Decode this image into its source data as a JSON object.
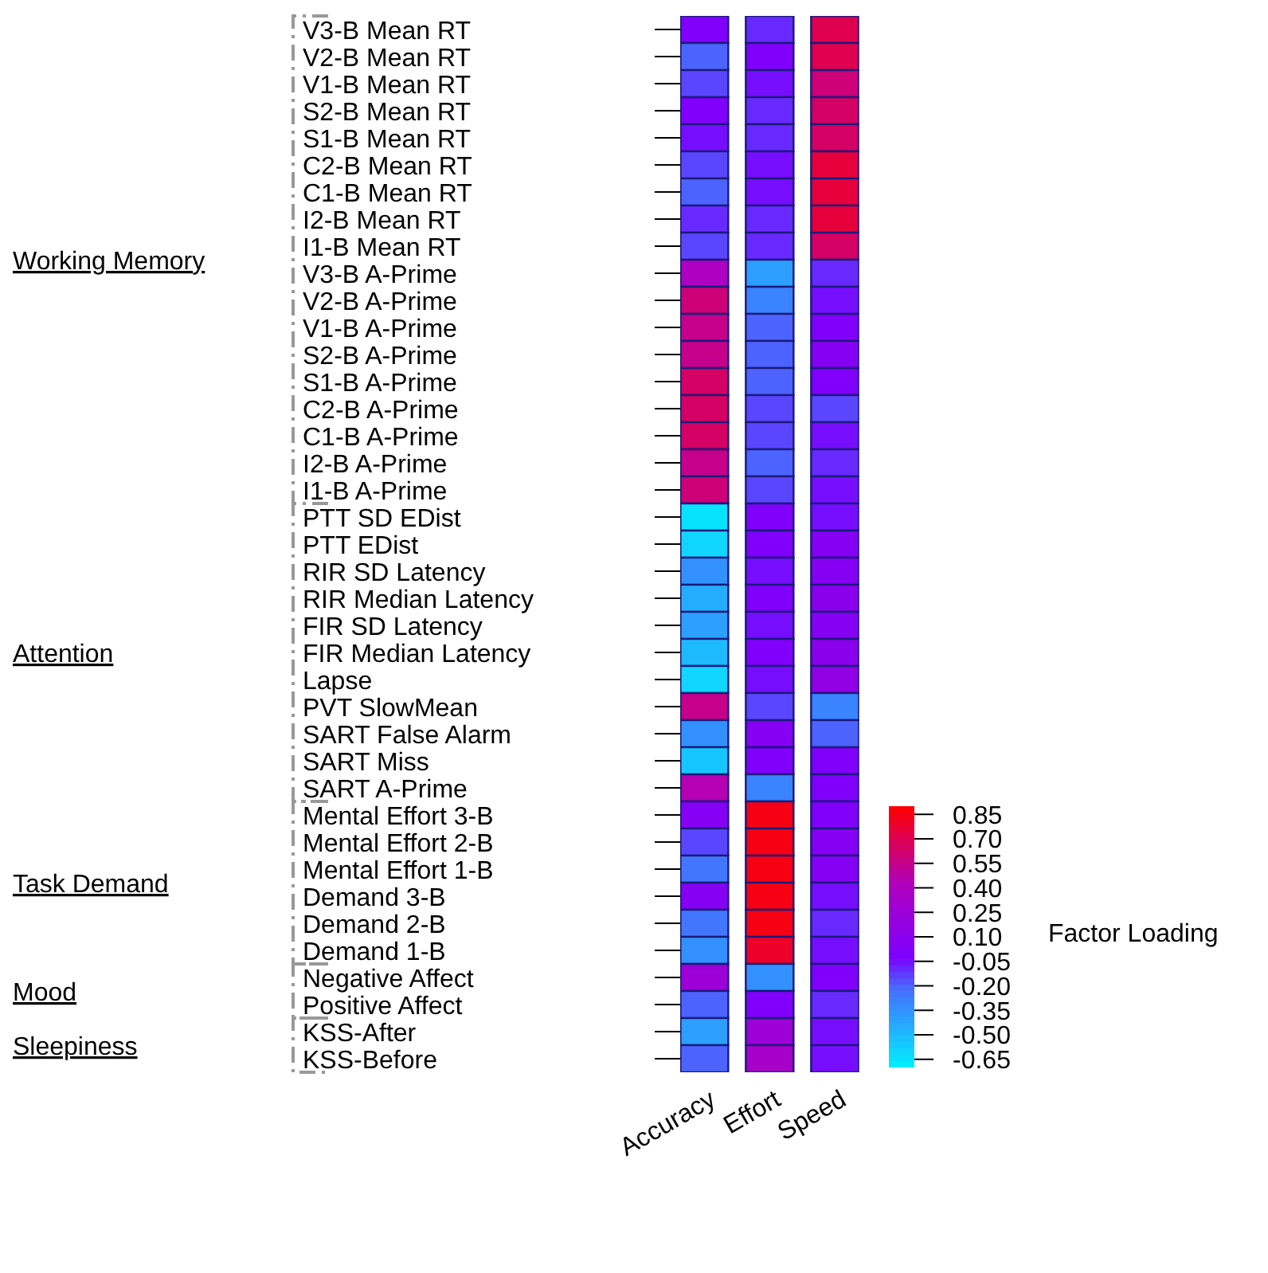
{
  "chart_data": {
    "type": "heatmap",
    "categories": [
      "Accuracy",
      "Effort",
      "Speed"
    ],
    "y_categories": [
      "V3-B Mean RT",
      "V2-B Mean RT",
      "V1-B Mean RT",
      "S2-B Mean RT",
      "S1-B Mean RT",
      "C2-B Mean RT",
      "C1-B Mean RT",
      "I2-B Mean RT",
      "I1-B Mean RT",
      "V3-B A-Prime",
      "V2-B A-Prime",
      "V1-B A-Prime",
      "S2-B A-Prime",
      "S1-B A-Prime",
      "C2-B A-Prime",
      "C1-B A-Prime",
      "I2-B A-Prime",
      "I1-B A-Prime",
      "PTT SD EDist",
      "PTT EDist",
      "RIR SD Latency",
      "RIR Median Latency",
      "FIR SD Latency",
      "FIR Median Latency",
      "Lapse",
      "PVT SlowMean",
      "SART False Alarm",
      "SART Miss",
      "SART A-Prime",
      "Mental Effort 3-B",
      "Mental Effort 2-B",
      "Mental Effort 1-B",
      "Demand 3-B",
      "Demand 2-B",
      "Demand 1-B",
      "Negative Affect",
      "Positive Affect",
      "KSS-After",
      "KSS-Before"
    ],
    "cells": [
      [
        0.0,
        -0.1,
        0.7
      ],
      [
        -0.2,
        0.0,
        0.7
      ],
      [
        -0.15,
        -0.05,
        0.6
      ],
      [
        0.0,
        -0.1,
        0.65
      ],
      [
        -0.05,
        -0.1,
        0.65
      ],
      [
        -0.15,
        -0.05,
        0.75
      ],
      [
        -0.2,
        -0.05,
        0.75
      ],
      [
        -0.1,
        -0.1,
        0.75
      ],
      [
        -0.15,
        -0.1,
        0.65
      ],
      [
        0.4,
        -0.4,
        -0.1
      ],
      [
        0.6,
        -0.3,
        -0.05
      ],
      [
        0.55,
        -0.2,
        0.0
      ],
      [
        0.55,
        -0.2,
        0.05
      ],
      [
        0.65,
        -0.2,
        0.0
      ],
      [
        0.65,
        -0.15,
        -0.15
      ],
      [
        0.65,
        -0.15,
        -0.05
      ],
      [
        0.55,
        -0.2,
        -0.1
      ],
      [
        0.6,
        -0.15,
        -0.05
      ],
      [
        -0.65,
        0.0,
        -0.05
      ],
      [
        -0.6,
        0.0,
        0.05
      ],
      [
        -0.35,
        -0.05,
        0.05
      ],
      [
        -0.45,
        0.0,
        0.1
      ],
      [
        -0.4,
        -0.05,
        0.05
      ],
      [
        -0.5,
        0.0,
        0.1
      ],
      [
        -0.6,
        -0.05,
        0.15
      ],
      [
        0.55,
        -0.15,
        -0.3
      ],
      [
        -0.35,
        0.05,
        -0.2
      ],
      [
        -0.55,
        0.0,
        0.0
      ],
      [
        0.45,
        -0.3,
        0.0
      ],
      [
        0.05,
        0.85,
        0.0
      ],
      [
        -0.15,
        0.85,
        0.05
      ],
      [
        -0.25,
        0.85,
        0.05
      ],
      [
        0.05,
        0.85,
        -0.05
      ],
      [
        -0.25,
        0.85,
        -0.1
      ],
      [
        -0.35,
        0.8,
        -0.05
      ],
      [
        0.25,
        -0.35,
        0.0
      ],
      [
        -0.2,
        0.0,
        -0.1
      ],
      [
        -0.4,
        0.25,
        -0.05
      ],
      [
        -0.2,
        0.35,
        -0.05
      ]
    ],
    "clim": [
      -0.7,
      0.9
    ],
    "cticks": [
      {
        "value": 0.85,
        "label": "0.85"
      },
      {
        "value": 0.7,
        "label": "0.70"
      },
      {
        "value": 0.55,
        "label": "0.55"
      },
      {
        "value": 0.4,
        "label": "0.40"
      },
      {
        "value": 0.25,
        "label": "0.25"
      },
      {
        "value": 0.1,
        "label": "0.10"
      },
      {
        "value": -0.05,
        "label": "-0.05"
      },
      {
        "value": -0.2,
        "label": "-0.20"
      },
      {
        "value": -0.35,
        "label": "-0.35"
      },
      {
        "value": -0.5,
        "label": "-0.50"
      },
      {
        "value": -0.65,
        "label": "-0.65"
      }
    ],
    "clabel": "Factor Loading",
    "annotations": [
      "Working Memory",
      "Attention",
      "Task Demand",
      "Mood",
      "Sleepiness"
    ]
  }
}
